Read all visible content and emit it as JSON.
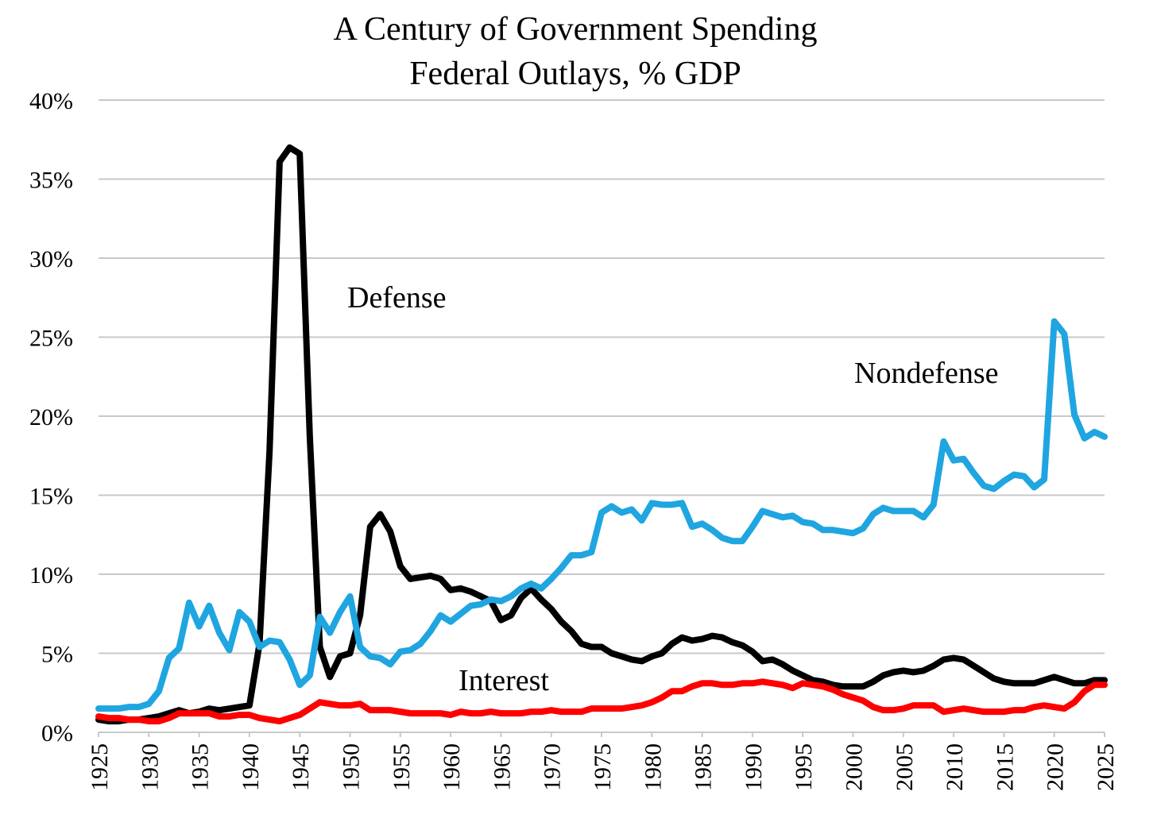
{
  "chart_data": {
    "type": "line",
    "title": "A Century of Government Spending",
    "subtitle": "Federal Outlays, % GDP",
    "x": [
      1925,
      1926,
      1927,
      1928,
      1929,
      1930,
      1931,
      1932,
      1933,
      1934,
      1935,
      1936,
      1937,
      1938,
      1939,
      1940,
      1941,
      1942,
      1943,
      1944,
      1945,
      1946,
      1947,
      1948,
      1949,
      1950,
      1951,
      1952,
      1953,
      1954,
      1955,
      1956,
      1957,
      1958,
      1959,
      1960,
      1961,
      1962,
      1963,
      1964,
      1965,
      1966,
      1967,
      1968,
      1969,
      1970,
      1971,
      1972,
      1973,
      1974,
      1975,
      1976,
      1977,
      1978,
      1979,
      1980,
      1981,
      1982,
      1983,
      1984,
      1985,
      1986,
      1987,
      1988,
      1989,
      1990,
      1991,
      1992,
      1993,
      1994,
      1995,
      1996,
      1997,
      1998,
      1999,
      2000,
      2001,
      2002,
      2003,
      2004,
      2005,
      2006,
      2007,
      2008,
      2009,
      2010,
      2011,
      2012,
      2013,
      2014,
      2015,
      2016,
      2017,
      2018,
      2019,
      2020,
      2021,
      2022,
      2023,
      2024,
      2025
    ],
    "series": [
      {
        "name": "Defense",
        "color": "#000000",
        "values": [
          0.8,
          0.7,
          0.7,
          0.8,
          0.8,
          0.9,
          1.0,
          1.2,
          1.4,
          1.2,
          1.3,
          1.5,
          1.4,
          1.5,
          1.6,
          1.7,
          5.6,
          17.8,
          36.1,
          37.0,
          36.6,
          18.7,
          5.4,
          3.5,
          4.8,
          5.0,
          7.4,
          13.0,
          13.8,
          12.7,
          10.5,
          9.7,
          9.8,
          9.9,
          9.7,
          9.0,
          9.1,
          8.9,
          8.6,
          8.3,
          7.1,
          7.4,
          8.5,
          9.1,
          8.4,
          7.8,
          7.0,
          6.4,
          5.6,
          5.4,
          5.4,
          5.0,
          4.8,
          4.6,
          4.5,
          4.8,
          5.0,
          5.6,
          6.0,
          5.8,
          5.9,
          6.1,
          6.0,
          5.7,
          5.5,
          5.1,
          4.5,
          4.6,
          4.3,
          3.9,
          3.6,
          3.3,
          3.2,
          3.0,
          2.9,
          2.9,
          2.9,
          3.2,
          3.6,
          3.8,
          3.9,
          3.8,
          3.9,
          4.2,
          4.6,
          4.7,
          4.6,
          4.2,
          3.8,
          3.4,
          3.2,
          3.1,
          3.1,
          3.1,
          3.3,
          3.5,
          3.3,
          3.1,
          3.1,
          3.3,
          3.3
        ]
      },
      {
        "name": "Nondefense",
        "color": "#1fa5e0",
        "values": [
          1.5,
          1.5,
          1.5,
          1.6,
          1.6,
          1.8,
          2.6,
          4.7,
          5.3,
          8.2,
          6.7,
          8.0,
          6.3,
          5.2,
          7.6,
          7.0,
          5.4,
          5.8,
          5.7,
          4.6,
          3.0,
          3.6,
          7.3,
          6.3,
          7.6,
          8.6,
          5.4,
          4.8,
          4.7,
          4.3,
          5.1,
          5.2,
          5.6,
          6.4,
          7.4,
          7.0,
          7.5,
          8.0,
          8.1,
          8.4,
          8.3,
          8.6,
          9.1,
          9.4,
          9.1,
          9.7,
          10.4,
          11.2,
          11.2,
          11.4,
          13.9,
          14.3,
          13.9,
          14.1,
          13.4,
          14.5,
          14.4,
          14.4,
          14.5,
          13.0,
          13.2,
          12.8,
          12.3,
          12.1,
          12.1,
          13.0,
          14.0,
          13.8,
          13.6,
          13.7,
          13.3,
          13.2,
          12.8,
          12.8,
          12.7,
          12.6,
          12.9,
          13.8,
          14.2,
          14.0,
          14.0,
          14.0,
          13.6,
          14.4,
          18.4,
          17.2,
          17.3,
          16.4,
          15.6,
          15.4,
          15.9,
          16.3,
          16.2,
          15.5,
          16.0,
          26.0,
          25.2,
          20.1,
          18.6,
          19.0,
          18.7
        ]
      },
      {
        "name": "Interest",
        "color": "#ff0000",
        "values": [
          1.0,
          0.9,
          0.9,
          0.8,
          0.8,
          0.7,
          0.7,
          0.9,
          1.2,
          1.2,
          1.2,
          1.2,
          1.0,
          1.0,
          1.1,
          1.1,
          0.9,
          0.8,
          0.7,
          0.9,
          1.1,
          1.5,
          1.9,
          1.8,
          1.7,
          1.7,
          1.8,
          1.4,
          1.4,
          1.4,
          1.3,
          1.2,
          1.2,
          1.2,
          1.2,
          1.1,
          1.3,
          1.2,
          1.2,
          1.3,
          1.2,
          1.2,
          1.2,
          1.3,
          1.3,
          1.4,
          1.3,
          1.3,
          1.3,
          1.5,
          1.5,
          1.5,
          1.5,
          1.6,
          1.7,
          1.9,
          2.2,
          2.6,
          2.6,
          2.9,
          3.1,
          3.1,
          3.0,
          3.0,
          3.1,
          3.1,
          3.2,
          3.1,
          3.0,
          2.8,
          3.1,
          3.0,
          2.9,
          2.7,
          2.4,
          2.2,
          2.0,
          1.6,
          1.4,
          1.4,
          1.5,
          1.7,
          1.7,
          1.7,
          1.3,
          1.4,
          1.5,
          1.4,
          1.3,
          1.3,
          1.3,
          1.4,
          1.4,
          1.6,
          1.7,
          1.6,
          1.5,
          1.9,
          2.6,
          3.0,
          3.0
        ]
      }
    ],
    "xlim": [
      1925,
      2025
    ],
    "xticks": [
      1925,
      1930,
      1935,
      1940,
      1945,
      1950,
      1955,
      1960,
      1965,
      1970,
      1975,
      1980,
      1985,
      1990,
      1995,
      2000,
      2005,
      2010,
      2015,
      2020,
      2025
    ],
    "ylim": [
      0,
      40
    ],
    "yticks": [
      {
        "value": 0,
        "label": "0%"
      },
      {
        "value": 5,
        "label": "5%"
      },
      {
        "value": 10,
        "label": "10%"
      },
      {
        "value": 15,
        "label": "15%"
      },
      {
        "value": 20,
        "label": "20%"
      },
      {
        "value": 25,
        "label": "25%"
      },
      {
        "value": 30,
        "label": "30%"
      },
      {
        "value": 35,
        "label": "35%"
      },
      {
        "value": 40,
        "label": "40%"
      }
    ],
    "grid": true
  }
}
